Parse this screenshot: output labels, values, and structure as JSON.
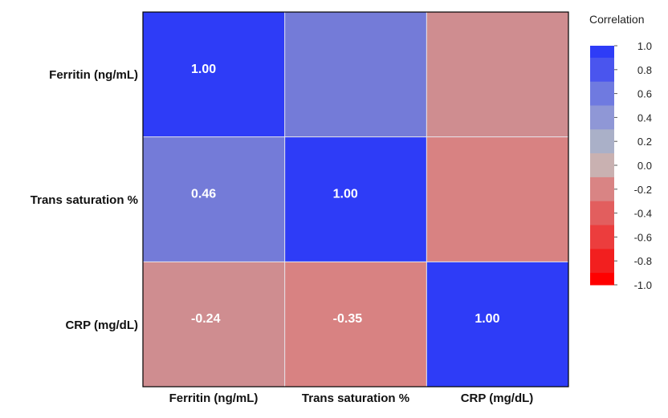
{
  "chart_data": {
    "type": "heatmap",
    "row_labels": [
      "Ferritin (ng/mL)",
      "Trans saturation %",
      "CRP (mg/dL)"
    ],
    "col_labels": [
      "Ferritin (ng/mL)",
      "Trans saturation %",
      "CRP (mg/dL)"
    ],
    "values": [
      [
        1.0,
        0.46,
        -0.24
      ],
      [
        0.46,
        1.0,
        -0.35
      ],
      [
        -0.24,
        -0.35,
        1.0
      ]
    ],
    "cell_labels": [
      [
        "1.00",
        "",
        ""
      ],
      [
        "0.46",
        "1.00",
        ""
      ],
      [
        "-0.24",
        "-0.35",
        "1.00"
      ]
    ],
    "legend": {
      "title": "Correlation",
      "ticks": [
        "1.0",
        "0.8",
        "0.6",
        "0.4",
        "0.2",
        "0.0",
        "-0.2",
        "-0.4",
        "-0.6",
        "-0.8",
        "-1.0"
      ],
      "placement": "right",
      "colors": [
        "#2e3cf7",
        "#4a55ee",
        "#6f7ae0",
        "#8f97d6",
        "#aab0c8",
        "#c9b1b1",
        "#d98484",
        "#e25e5e",
        "#ec3d3d",
        "#f21f1f",
        "#ff0000"
      ]
    },
    "vlim": [
      -1,
      1
    ]
  }
}
